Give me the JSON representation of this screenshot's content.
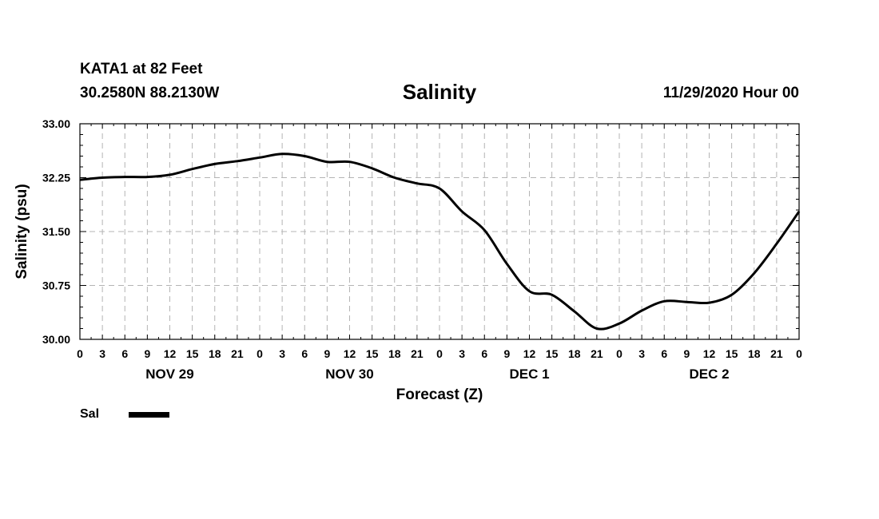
{
  "header": {
    "station": "KATA1 at 82 Feet",
    "coords": "30.2580N 88.2130W",
    "title": "Salinity",
    "issued": "11/29/2020 Hour 00"
  },
  "legend": {
    "label": "Sal",
    "color": "#000000"
  },
  "chart_data": {
    "type": "line",
    "title": "Salinity",
    "xlabel": "Forecast (Z)",
    "ylabel": "Salinity (psu)",
    "ylim": [
      30.0,
      33.0
    ],
    "xlim": [
      0,
      96
    ],
    "y_ticks": [
      "30.00",
      "30.75",
      "31.50",
      "32.25",
      "33.00"
    ],
    "x_hour_ticks": [
      "0",
      "3",
      "6",
      "9",
      "12",
      "15",
      "18",
      "21",
      "0",
      "3",
      "6",
      "9",
      "12",
      "15",
      "18",
      "21",
      "0",
      "3",
      "6",
      "9",
      "12",
      "15",
      "18",
      "21",
      "0",
      "3",
      "6",
      "9",
      "12",
      "15",
      "18",
      "21",
      "0"
    ],
    "day_labels": [
      "NOV 29",
      "NOV 30",
      "DEC 1",
      "DEC 2"
    ],
    "grid": true,
    "legend_position": "bottom-left",
    "series": [
      {
        "name": "Sal",
        "x": [
          0,
          3,
          6,
          9,
          12,
          15,
          18,
          21,
          24,
          27,
          30,
          33,
          36,
          39,
          42,
          45,
          48,
          51,
          54,
          57,
          60,
          63,
          66,
          69,
          72,
          75,
          78,
          81,
          84,
          87,
          90,
          93,
          96
        ],
        "values": [
          32.22,
          32.25,
          32.26,
          32.26,
          32.29,
          32.37,
          32.44,
          32.48,
          32.53,
          32.58,
          32.55,
          32.47,
          32.47,
          32.38,
          32.25,
          32.17,
          32.1,
          31.78,
          31.52,
          31.05,
          30.67,
          30.62,
          30.39,
          30.15,
          30.22,
          30.4,
          30.53,
          30.52,
          30.51,
          30.62,
          30.92,
          31.33,
          31.78
        ]
      }
    ]
  }
}
